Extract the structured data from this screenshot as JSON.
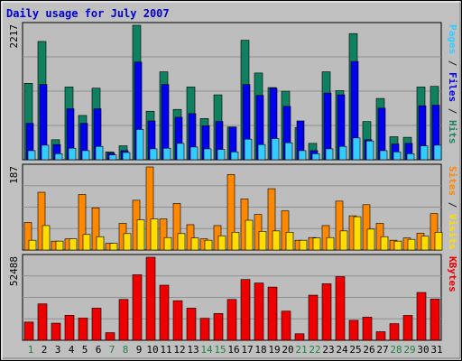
{
  "chart_data": {
    "type": "bar",
    "title": "Daily usage for July 2007",
    "categories": [
      "1",
      "2",
      "3",
      "4",
      "5",
      "6",
      "7",
      "8",
      "9",
      "10",
      "11",
      "12",
      "13",
      "14",
      "15",
      "16",
      "17",
      "18",
      "19",
      "20",
      "21",
      "22",
      "23",
      "24",
      "25",
      "26",
      "27",
      "28",
      "29",
      "30",
      "31"
    ],
    "weekend_days": [
      "1",
      "7",
      "8",
      "14",
      "15",
      "21",
      "22",
      "28",
      "29"
    ],
    "panels": [
      {
        "name": "hits-files-pages",
        "ymax": 2217,
        "ymax_label": "2217",
        "side_label": [
          {
            "text": "Pages",
            "color": "#33ccff"
          },
          {
            "text": " / ",
            "color": "#202020"
          },
          {
            "text": "Files",
            "color": "#0000ee"
          },
          {
            "text": " / ",
            "color": "#202020"
          },
          {
            "text": "Hits",
            "color": "#208060"
          }
        ],
        "series": [
          {
            "name": "Hits",
            "color": "#0f8060",
            "values": [
              1260,
              1950,
              330,
              1200,
              730,
              1180,
              130,
              230,
              2217,
              800,
              1450,
              830,
              1200,
              680,
              1070,
              540,
              1970,
              1430,
              1190,
              1130,
              530,
              270,
              1450,
              1140,
              2080,
              630,
              1010,
              380,
              370,
              1200,
              1210
            ]
          },
          {
            "name": "Files",
            "color": "#0000ee",
            "values": [
              600,
              1240,
              250,
              840,
              600,
              840,
              110,
              150,
              1610,
              640,
              1240,
              700,
              760,
              560,
              630,
              540,
              1240,
              1060,
              1180,
              880,
              640,
              150,
              1100,
              1070,
              1620,
              330,
              850,
              260,
              270,
              890,
              900
            ]
          },
          {
            "name": "Pages",
            "color": "#33ccff",
            "values": [
              150,
              240,
              100,
              190,
              150,
              220,
              80,
              120,
              500,
              180,
              190,
              270,
              210,
              180,
              170,
              130,
              340,
              250,
              350,
              280,
              150,
              100,
              180,
              220,
              360,
              310,
              150,
              130,
              100,
              230,
              240
            ]
          }
        ]
      },
      {
        "name": "visits-sites",
        "ymax": 187,
        "ymax_label": "187",
        "side_label": [
          {
            "text": "Sites",
            "color": "#ff8800"
          },
          {
            "text": " / ",
            "color": "#202020"
          },
          {
            "text": "Visits",
            "color": "#ffdd00"
          }
        ],
        "series": [
          {
            "name": "Visits",
            "color": "#ff8800",
            "values": [
              62,
              130,
              20,
              25,
              125,
              95,
              15,
              60,
              112,
              187,
              70,
              105,
              57,
              25,
              55,
              170,
              115,
              80,
              138,
              88,
              22,
              28,
              55,
              110,
              77,
              102,
              60,
              22,
              27,
              38,
              82
            ]
          },
          {
            "name": "Sites",
            "color": "#ffdd00",
            "values": [
              22,
              55,
              20,
              25,
              35,
              30,
              15,
              37,
              68,
              70,
              28,
              37,
              27,
              22,
              32,
              40,
              67,
              42,
              43,
              40,
              22,
              27,
              28,
              43,
              75,
              47,
              30,
              20,
              24,
              31,
              40
            ]
          }
        ]
      },
      {
        "name": "kbytes",
        "ymax": 52488,
        "ymax_label": "52488",
        "side_label": [
          {
            "text": "KBytes",
            "color": "#ee0000"
          }
        ],
        "series": [
          {
            "name": "KBytes",
            "color": "#ee0000",
            "values": [
              11500,
              23000,
              10800,
              15800,
              14000,
              20300,
              4800,
              25800,
              41400,
              52488,
              34800,
              25000,
              20300,
              13900,
              16900,
              25800,
              38400,
              36200,
              33600,
              18400,
              4100,
              28500,
              35700,
              40200,
              12600,
              14600,
              5400,
              10500,
              15700,
              30200,
              26000
            ]
          }
        ]
      }
    ]
  }
}
